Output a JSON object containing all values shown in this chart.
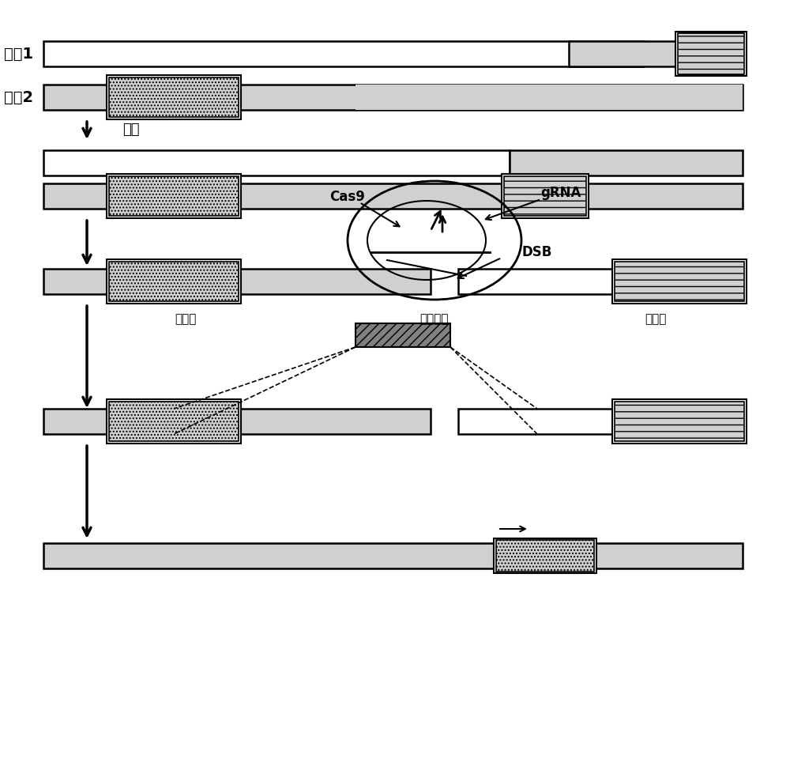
{
  "fig_width": 10.0,
  "fig_height": 9.74,
  "bg_color": "#ffffff",
  "light_gray": "#d0d0d0",
  "med_gray": "#b0b0b0",
  "dark_gray": "#808080",
  "white": "#ffffff",
  "black": "#000000",
  "bar_height": 0.32,
  "gene1_label": "基因1",
  "gene2_label": "基因2",
  "yiwei_label": "易位",
  "cas9_label": "Cas9",
  "grna_label": "gRNA",
  "dsb_label": "DSB",
  "homology_label": "同源臂",
  "suicide_label": "自杀基因",
  "arrow_label": "→"
}
